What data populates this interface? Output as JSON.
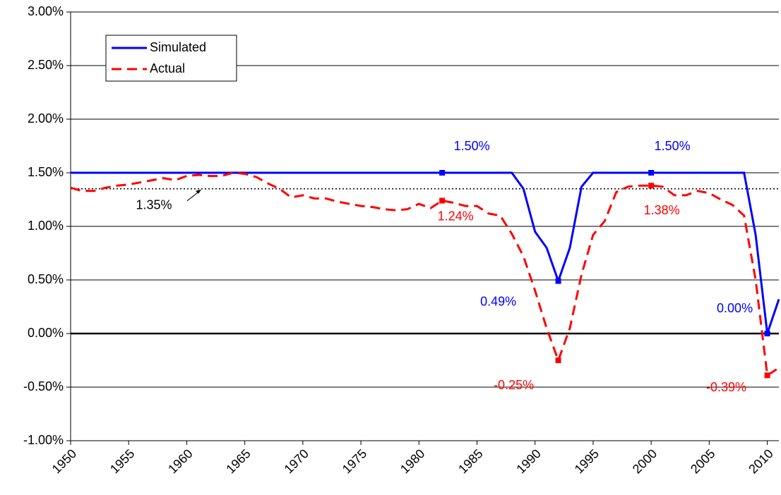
{
  "chart_data": {
    "type": "line",
    "x": [
      1950,
      1951,
      1952,
      1953,
      1954,
      1955,
      1956,
      1957,
      1958,
      1959,
      1960,
      1961,
      1962,
      1963,
      1964,
      1965,
      1966,
      1967,
      1968,
      1969,
      1970,
      1971,
      1972,
      1973,
      1974,
      1975,
      1976,
      1977,
      1978,
      1979,
      1980,
      1981,
      1982,
      1983,
      1984,
      1985,
      1986,
      1987,
      1988,
      1989,
      1990,
      1991,
      1992,
      1993,
      1994,
      1995,
      1996,
      1997,
      1998,
      1999,
      2000,
      2001,
      2002,
      2003,
      2004,
      2005,
      2006,
      2007,
      2008,
      2009,
      2010,
      2011
    ],
    "series": [
      {
        "name": "Simulated",
        "color": "#0000ff",
        "dash": false,
        "values": [
          1.5,
          1.5,
          1.5,
          1.5,
          1.5,
          1.5,
          1.5,
          1.5,
          1.5,
          1.5,
          1.5,
          1.5,
          1.5,
          1.5,
          1.5,
          1.5,
          1.5,
          1.5,
          1.5,
          1.5,
          1.5,
          1.5,
          1.5,
          1.5,
          1.5,
          1.5,
          1.5,
          1.5,
          1.5,
          1.5,
          1.5,
          1.5,
          1.5,
          1.5,
          1.5,
          1.5,
          1.5,
          1.5,
          1.5,
          1.35,
          0.95,
          0.8,
          0.49,
          0.8,
          1.37,
          1.5,
          1.5,
          1.5,
          1.5,
          1.5,
          1.5,
          1.5,
          1.5,
          1.5,
          1.5,
          1.5,
          1.5,
          1.5,
          1.5,
          0.92,
          0.0,
          0.32
        ],
        "value_labels": [
          null,
          null,
          null,
          null,
          null,
          null,
          null,
          null,
          null,
          null,
          null,
          null,
          null,
          null,
          null,
          null,
          null,
          null,
          null,
          null,
          null,
          null,
          null,
          null,
          null,
          null,
          null,
          null,
          null,
          null,
          null,
          null,
          "1.50%",
          null,
          null,
          null,
          null,
          null,
          null,
          null,
          null,
          null,
          "0.49%",
          null,
          null,
          null,
          null,
          null,
          null,
          null,
          "1.50%",
          null,
          null,
          null,
          null,
          null,
          null,
          null,
          null,
          null,
          "0.00%",
          null
        ]
      },
      {
        "name": "Actual",
        "color": "#ff0000",
        "dash": true,
        "values": [
          1.36,
          1.33,
          1.33,
          1.36,
          1.38,
          1.39,
          1.41,
          1.43,
          1.45,
          1.43,
          1.47,
          1.48,
          1.47,
          1.47,
          1.5,
          1.49,
          1.46,
          1.4,
          1.35,
          1.27,
          1.29,
          1.26,
          1.26,
          1.23,
          1.21,
          1.19,
          1.18,
          1.16,
          1.15,
          1.16,
          1.21,
          1.17,
          1.24,
          1.22,
          1.19,
          1.19,
          1.12,
          1.1,
          0.93,
          0.72,
          0.4,
          0.05,
          -0.25,
          0.05,
          0.55,
          0.92,
          1.05,
          1.32,
          1.37,
          1.38,
          1.38,
          1.37,
          1.29,
          1.29,
          1.33,
          1.31,
          1.25,
          1.2,
          1.1,
          0.5,
          -0.39,
          -0.32
        ],
        "value_labels": [
          null,
          null,
          null,
          null,
          null,
          null,
          null,
          null,
          null,
          null,
          null,
          null,
          null,
          null,
          null,
          null,
          null,
          null,
          null,
          null,
          null,
          null,
          null,
          null,
          null,
          null,
          null,
          null,
          null,
          null,
          null,
          null,
          "1.24%",
          null,
          null,
          null,
          null,
          null,
          null,
          null,
          null,
          null,
          "-0.25%",
          null,
          null,
          null,
          null,
          null,
          null,
          null,
          "1.38%",
          null,
          null,
          null,
          null,
          null,
          null,
          null,
          null,
          null,
          "-0.39%",
          null
        ]
      }
    ],
    "reference": {
      "value": 1.35,
      "label": "1.35%"
    },
    "xlim": [
      1950,
      2011
    ],
    "xticks": [
      1950,
      1955,
      1960,
      1965,
      1970,
      1975,
      1980,
      1985,
      1990,
      1995,
      2000,
      2005,
      2010
    ],
    "ylim": [
      -1,
      3
    ],
    "yticks": [
      {
        "value": -1,
        "label": "-1.00%"
      },
      {
        "value": -0.5,
        "label": "-0.50%"
      },
      {
        "value": 0,
        "label": "0.00%"
      },
      {
        "value": 0.5,
        "label": "0.50%"
      },
      {
        "value": 1,
        "label": "1.00%"
      },
      {
        "value": 1.5,
        "label": "1.50%"
      },
      {
        "value": 2,
        "label": "2.00%"
      },
      {
        "value": 2.5,
        "label": "2.50%"
      },
      {
        "value": 3,
        "label": "3.00%"
      }
    ],
    "grid": true
  }
}
